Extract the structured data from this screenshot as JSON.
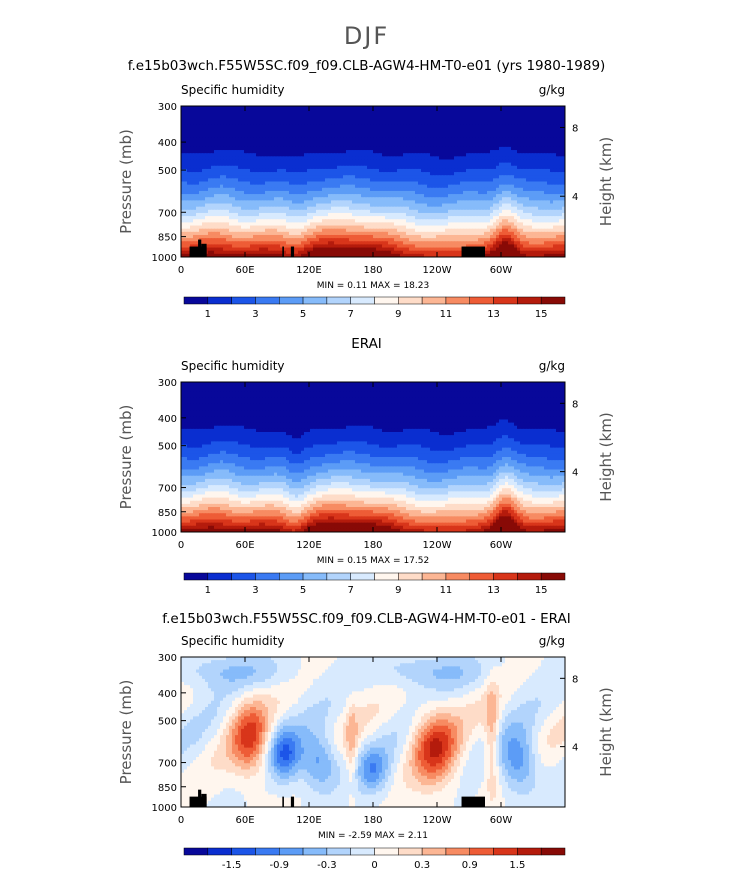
{
  "page": {
    "title": "DJF"
  },
  "colors": {
    "full": [
      "#08089a",
      "#0a2ed0",
      "#1c55e8",
      "#3a7af2",
      "#5c9cf6",
      "#86bbfa",
      "#b2d4fc",
      "#d8eafe",
      "#fff6ee",
      "#fedcc8",
      "#fcb694",
      "#f78b62",
      "#ee5c36",
      "#d8351a",
      "#b41b0c",
      "#880a06"
    ],
    "diff": [
      "#08089a",
      "#0a2ed0",
      "#1c55e8",
      "#3a7af2",
      "#5c9cf6",
      "#86bbfa",
      "#b2d4fc",
      "#d8eafe",
      "#fff6ee",
      "#fedcc8",
      "#fcb694",
      "#f78b62",
      "#ee5c36",
      "#d8351a",
      "#b41b0c",
      "#880a06"
    ],
    "terrain": "#000000"
  },
  "chart_data": [
    {
      "type": "heatmap",
      "title": "f.e15b03wch.F55W5SC.f09_f09.CLB-AGW4-HM-T0-e01 (yrs 1980-1989)",
      "left_label": "Specific humidity",
      "right_label": "g/kg",
      "ylabel": "Pressure (mb)",
      "y2label": "Height (km)",
      "x_ticks": [
        "0",
        "60E",
        "120E",
        "180",
        "120W",
        "60W"
      ],
      "y_ticks": [
        "300",
        "400",
        "500",
        "700",
        "850",
        "1000"
      ],
      "y2_ticks": [
        "8",
        "4"
      ],
      "stats": {
        "min_label": "MIN =",
        "min": "0.11",
        "max_label": "MAX =",
        "max": "18.23"
      },
      "colorbar_labels": [
        "1",
        "3",
        "5",
        "7",
        "9",
        "11",
        "13",
        "15"
      ]
    },
    {
      "type": "heatmap",
      "title": "ERAI",
      "left_label": "Specific humidity",
      "right_label": "g/kg",
      "ylabel": "Pressure (mb)",
      "y2label": "Height (km)",
      "x_ticks": [
        "0",
        "60E",
        "120E",
        "180",
        "120W",
        "60W"
      ],
      "y_ticks": [
        "300",
        "400",
        "500",
        "700",
        "850",
        "1000"
      ],
      "y2_ticks": [
        "8",
        "4"
      ],
      "stats": {
        "min_label": "MIN =",
        "min": "0.15",
        "max_label": "MAX =",
        "max": "17.52"
      },
      "colorbar_labels": [
        "1",
        "3",
        "5",
        "7",
        "9",
        "11",
        "13",
        "15"
      ]
    },
    {
      "type": "heatmap",
      "title": "f.e15b03wch.F55W5SC.f09_f09.CLB-AGW4-HM-T0-e01 - ERAI",
      "left_label": "Specific humidity",
      "right_label": "g/kg",
      "ylabel": "Pressure (mb)",
      "y2label": "Height (km)",
      "x_ticks": [
        "0",
        "60E",
        "120E",
        "180",
        "120W",
        "60W"
      ],
      "y_ticks": [
        "300",
        "400",
        "500",
        "700",
        "850",
        "1000"
      ],
      "y2_ticks": [
        "8",
        "4"
      ],
      "stats": {
        "min_label": "MIN =",
        "min": "-2.59",
        "max_label": "MAX =",
        "max": "2.11"
      },
      "colorbar_labels": [
        "-1.5",
        "-0.9",
        "-0.3",
        "0",
        "0.3",
        "0.9",
        "1.5"
      ]
    }
  ]
}
